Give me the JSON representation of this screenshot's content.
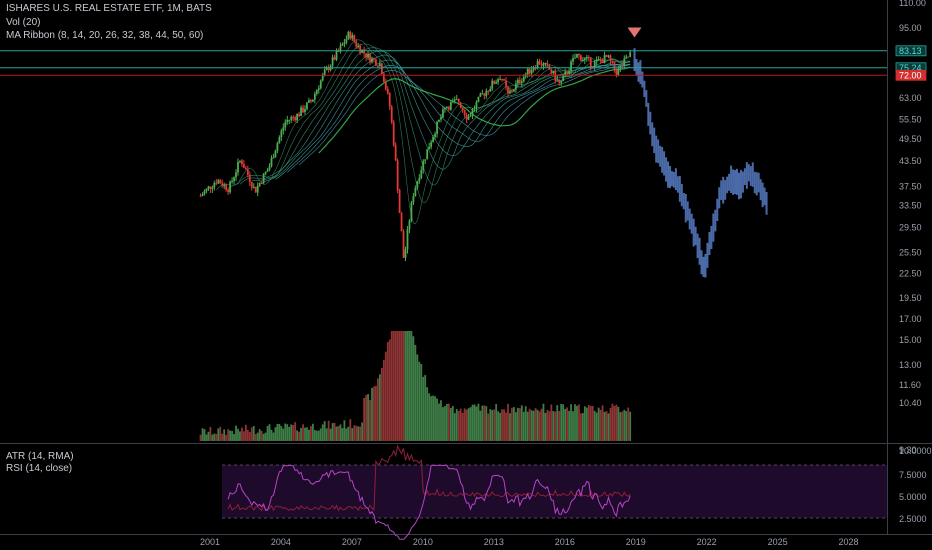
{
  "header": {
    "title": "ISHARES U.S. REAL ESTATE ETF, 1M, BATS",
    "vol": "Vol (20)",
    "ma_ribbon": "MA Ribbon (8, 14, 20, 26, 32, 38, 44, 50, 60)",
    "atr": "ATR (14, RMA)",
    "rsi": "RSI (14, close)"
  },
  "colors": {
    "up": "#4caf50",
    "down": "#e53935",
    "projection": "#4a6aa8",
    "horizontal_line": "#26a69a",
    "support_line": "#b71c1c",
    "arrow": "#e57373",
    "rsi": "#b545c8",
    "atr": "#8e1f3a",
    "rsi_band": "#1e0a2a",
    "vol_ma": "#e0c890"
  },
  "chart_data": [
    {
      "type": "candlestick",
      "name": "price",
      "scale": "log",
      "ylim": [
        19.5,
        110.0
      ],
      "y_ticks": [
        "110.00",
        "95.00",
        "83.13",
        "75.24",
        "72.00",
        "63.00",
        "55.50",
        "49.50",
        "43.50",
        "37.50",
        "33.50",
        "29.50",
        "25.50",
        "22.50",
        "19.50"
      ],
      "x_ticks": [
        "2001",
        "2004",
        "2007",
        "2010",
        "2013",
        "2016",
        "2019",
        "2022",
        "2025",
        "2028"
      ],
      "xlim": [
        1999.5,
        2030.0
      ],
      "price_labels": [
        {
          "label": "83.13",
          "value": 83.13,
          "style": "teal"
        },
        {
          "label": "75.24",
          "value": 75.24,
          "style": "teal"
        },
        {
          "label": "72.00",
          "value": 72.0,
          "style": "red"
        }
      ],
      "anchors": [
        [
          2000.6,
          35.5
        ],
        [
          2001.3,
          39
        ],
        [
          2001.8,
          37
        ],
        [
          2002.3,
          44
        ],
        [
          2002.9,
          36.5
        ],
        [
          2003.5,
          42
        ],
        [
          2004.2,
          55
        ],
        [
          2004.7,
          57
        ],
        [
          2005.3,
          62
        ],
        [
          2005.8,
          72
        ],
        [
          2006.4,
          82
        ],
        [
          2006.9,
          92
        ],
        [
          2007.2,
          86
        ],
        [
          2007.7,
          80
        ],
        [
          2008.2,
          77
        ],
        [
          2008.6,
          60
        ],
        [
          2009.0,
          33
        ],
        [
          2009.2,
          24
        ],
        [
          2009.6,
          36
        ],
        [
          2010.0,
          43
        ],
        [
          2010.5,
          52
        ],
        [
          2011.0,
          60
        ],
        [
          2011.5,
          62
        ],
        [
          2011.9,
          56
        ],
        [
          2012.5,
          64
        ],
        [
          2013.3,
          72
        ],
        [
          2013.6,
          64
        ],
        [
          2014.2,
          71
        ],
        [
          2014.9,
          78
        ],
        [
          2015.4,
          74
        ],
        [
          2015.8,
          68
        ],
        [
          2016.5,
          81
        ],
        [
          2017.2,
          77
        ],
        [
          2017.8,
          80
        ],
        [
          2018.2,
          73
        ],
        [
          2018.8,
          82
        ]
      ],
      "projection_anchors": [
        [
          2018.95,
          78
        ],
        [
          2019.3,
          70
        ],
        [
          2019.6,
          55
        ],
        [
          2019.9,
          46
        ],
        [
          2020.4,
          40
        ],
        [
          2020.8,
          38
        ],
        [
          2021.2,
          32
        ],
        [
          2021.6,
          27
        ],
        [
          2021.9,
          22.5
        ],
        [
          2022.2,
          28
        ],
        [
          2022.6,
          36
        ],
        [
          2023.0,
          39
        ],
        [
          2023.4,
          38
        ],
        [
          2023.8,
          41
        ],
        [
          2024.2,
          38
        ],
        [
          2024.6,
          34
        ]
      ],
      "volume": {
        "ylim": [
          0,
          100
        ],
        "spike_date": 2009.1,
        "vol_ma_peak": 2009.6
      },
      "rsi_band": {
        "low": 30,
        "high": 70
      },
      "rsi_ticks": [
        "10.0000",
        "7.5000",
        "5.0000",
        "2.5000"
      ]
    }
  ]
}
